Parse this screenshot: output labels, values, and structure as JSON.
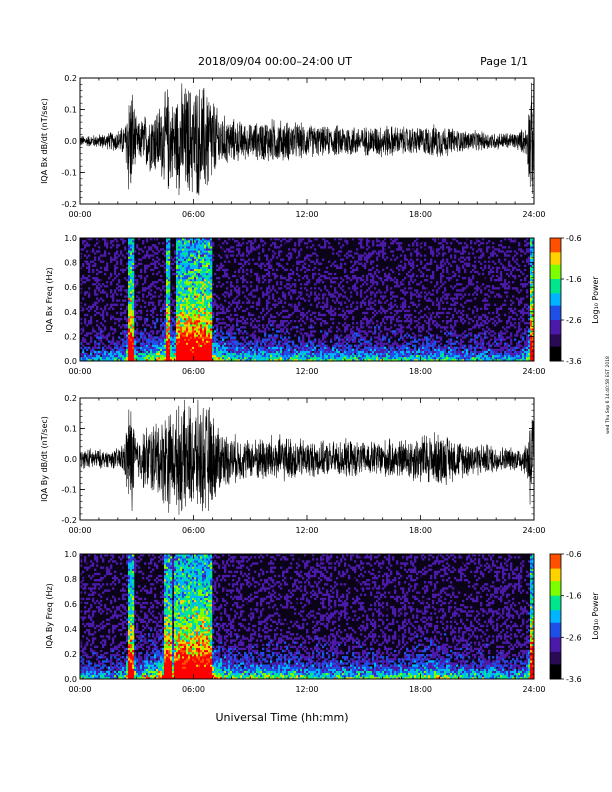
{
  "header": {
    "title": "2018/09/04  00:00–24:00 UT",
    "page": "Page 1/1"
  },
  "footer": {
    "xlabel": "Universal Time (hh:mm)"
  },
  "side_stamp": "wed Thu Sep 6 14:40:58 EST 2018",
  "colors": {
    "trace": "#000000",
    "colormap": [
      "#000000",
      "#2a0a55",
      "#4b1aa8",
      "#1e4fe6",
      "#00b4ff",
      "#00e68c",
      "#7dff00",
      "#ffd200",
      "#ff5000",
      "#ff0000"
    ]
  },
  "chart_data": [
    {
      "type": "line",
      "name": "IQA Bx dB/dt",
      "ylabel": "IQA Bx dB/dt (nT/sec)",
      "xlim": [
        0,
        24
      ],
      "ylim": [
        -0.2,
        0.2
      ],
      "yticks": [
        "0.2",
        "0.1",
        "0.0",
        "-0.1",
        "-0.2"
      ],
      "xticks": [
        "00:00",
        "06:00",
        "12:00",
        "18:00",
        "24:00"
      ],
      "envelope": {
        "hours": [
          0,
          0.5,
          1,
          1.5,
          2,
          2.4,
          2.55,
          2.75,
          3,
          3.5,
          4,
          4.4,
          4.6,
          4.9,
          5.3,
          5.6,
          5.9,
          6.2,
          6.5,
          6.8,
          7.2,
          7.6,
          8,
          9,
          10,
          11,
          12,
          13,
          14,
          15,
          16,
          17,
          18,
          19,
          20,
          21,
          22,
          23,
          23.6,
          23.8,
          24
        ],
        "amplitude": [
          0.02,
          0.02,
          0.025,
          0.03,
          0.04,
          0.06,
          0.2,
          0.2,
          0.06,
          0.1,
          0.12,
          0.14,
          0.2,
          0.14,
          0.2,
          0.2,
          0.2,
          0.2,
          0.2,
          0.2,
          0.12,
          0.09,
          0.08,
          0.06,
          0.08,
          0.07,
          0.06,
          0.05,
          0.06,
          0.05,
          0.06,
          0.05,
          0.05,
          0.06,
          0.04,
          0.035,
          0.03,
          0.03,
          0.05,
          0.2,
          0.2
        ]
      }
    },
    {
      "type": "heatmap",
      "name": "IQA Bx Freq",
      "ylabel": "IQA Bx Freq (Hz)",
      "xlim": [
        0,
        24
      ],
      "ylim": [
        0,
        1
      ],
      "yticks": [
        "1.0",
        "0.8",
        "0.6",
        "0.4",
        "0.2",
        "0.0"
      ],
      "xticks": [
        "00:00",
        "06:00",
        "12:00",
        "18:00",
        "24:00"
      ],
      "colorbar": {
        "label": "Log₁₀ Power",
        "ticks": [
          "-0.6",
          "-1.6",
          "-2.6",
          "-3.6"
        ],
        "range": [
          -3.6,
          -0.6
        ]
      }
    },
    {
      "type": "line",
      "name": "IQA By dB/dt",
      "ylabel": "IQA By dB/dt (nT/sec)",
      "xlim": [
        0,
        24
      ],
      "ylim": [
        -0.2,
        0.2
      ],
      "yticks": [
        "0.2",
        "0.1",
        "0.0",
        "-0.1",
        "-0.2"
      ],
      "xticks": [
        "00:00",
        "06:00",
        "12:00",
        "18:00",
        "24:00"
      ],
      "envelope": {
        "hours": [
          0,
          0.5,
          1,
          1.5,
          2,
          2.4,
          2.55,
          2.75,
          3,
          3.5,
          4,
          4.4,
          4.6,
          4.9,
          5.3,
          5.6,
          5.9,
          6.2,
          6.5,
          6.8,
          7.2,
          7.6,
          8,
          9,
          10,
          11,
          12,
          13,
          14,
          15,
          16,
          17,
          18,
          19,
          20,
          21,
          22,
          23,
          23.6,
          23.8,
          24
        ],
        "amplitude": [
          0.03,
          0.04,
          0.035,
          0.03,
          0.04,
          0.07,
          0.2,
          0.2,
          0.07,
          0.12,
          0.14,
          0.16,
          0.2,
          0.16,
          0.2,
          0.2,
          0.2,
          0.2,
          0.2,
          0.2,
          0.14,
          0.1,
          0.09,
          0.07,
          0.09,
          0.08,
          0.07,
          0.06,
          0.07,
          0.06,
          0.07,
          0.07,
          0.09,
          0.1,
          0.07,
          0.06,
          0.05,
          0.04,
          0.06,
          0.2,
          0.2
        ]
      }
    },
    {
      "type": "heatmap",
      "name": "IQA By Freq",
      "ylabel": "IQA By Freq (Hz)",
      "xlim": [
        0,
        24
      ],
      "ylim": [
        0,
        1
      ],
      "yticks": [
        "1.0",
        "0.8",
        "0.6",
        "0.4",
        "0.2",
        "0.0"
      ],
      "xticks": [
        "00:00",
        "06:00",
        "12:00",
        "18:00",
        "24:00"
      ],
      "colorbar": {
        "label": "Log₁₀ Power",
        "ticks": [
          "-0.6",
          "-1.6",
          "-2.6",
          "-3.6"
        ],
        "range": [
          -3.6,
          -0.6
        ]
      }
    }
  ]
}
